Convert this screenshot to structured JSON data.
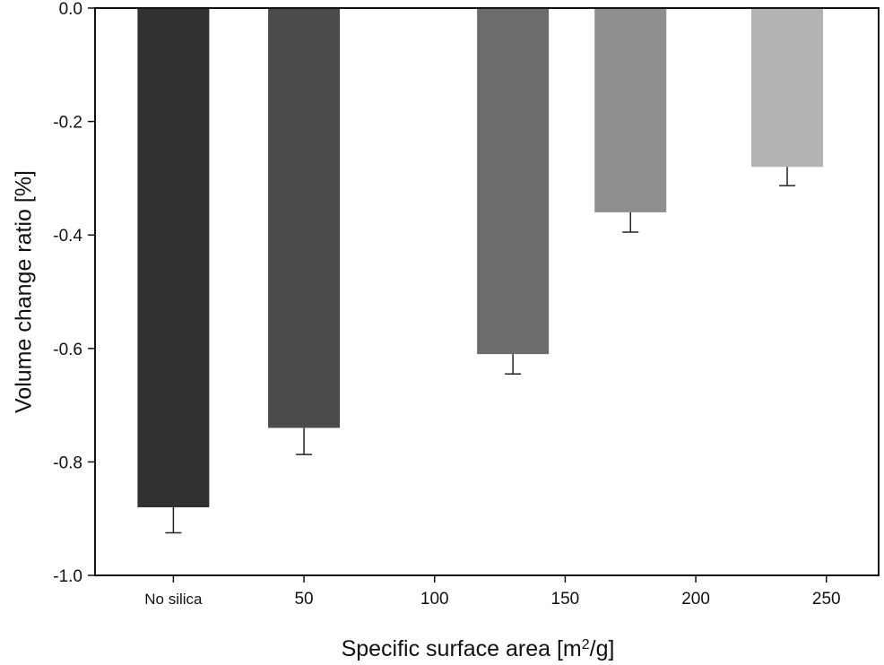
{
  "chart_data": {
    "type": "bar",
    "title": "",
    "xlabel": "Specific surface area [m²/g]",
    "xlabel_parts": {
      "main": "Specific surface area [m",
      "sup": "2",
      "tail": "/g]"
    },
    "ylabel": "Volume change ratio [%]",
    "ylim": [
      -1.0,
      0.0
    ],
    "y_ticks": [
      "0.0",
      "-0.2",
      "-0.4",
      "-0.6",
      "-0.8",
      "-1.0"
    ],
    "y_tick_values": [
      0.0,
      -0.2,
      -0.4,
      -0.6,
      -0.8,
      -1.0
    ],
    "x_ticks": [
      "No silica",
      "50",
      "100",
      "150",
      "200",
      "250"
    ],
    "x_tick_values": [
      0,
      50,
      100,
      150,
      200,
      250
    ],
    "bars": [
      {
        "label": "No silica",
        "x": 0,
        "value": -0.88,
        "error": 0.045,
        "color": "#313131"
      },
      {
        "label": "50",
        "x": 50,
        "value": -0.74,
        "error": 0.047,
        "color": "#4b4b4b"
      },
      {
        "label": "130",
        "x": 130,
        "value": -0.61,
        "error": 0.035,
        "color": "#6c6c6c"
      },
      {
        "label": "175",
        "x": 175,
        "value": -0.36,
        "error": 0.035,
        "color": "#8e8e8e"
      },
      {
        "label": "235",
        "x": 235,
        "value": -0.28,
        "error": 0.033,
        "color": "#b3b3b3"
      }
    ],
    "grid": false,
    "legend": "none"
  }
}
